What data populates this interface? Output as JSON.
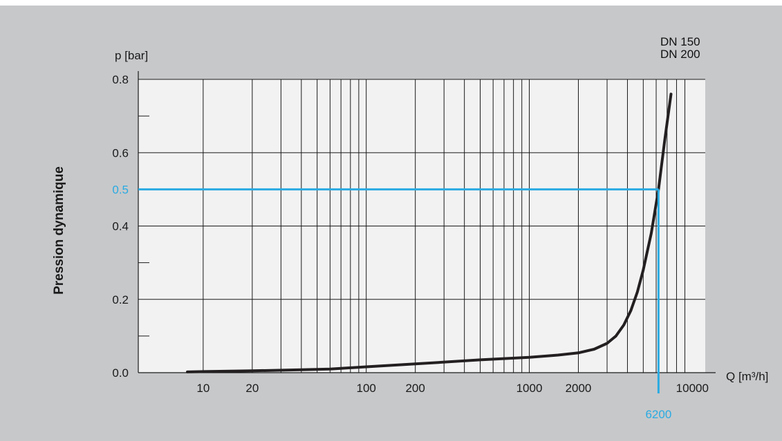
{
  "chart_data": {
    "type": "line",
    "title": "",
    "ylabel_title": "Pression dynamique",
    "ylabel": "p [bar]",
    "xlabel": "Q [m³/h]",
    "x_scale": "log",
    "xlim": [
      4,
      12000
    ],
    "ylim": [
      0,
      0.8
    ],
    "x_ticks": [
      10,
      20,
      100,
      200,
      1000,
      2000,
      10000
    ],
    "x_tick_labels": [
      "10",
      "20",
      "100",
      "200",
      "1000",
      "2000",
      "10000"
    ],
    "y_ticks": [
      0.0,
      0.2,
      0.4,
      0.6,
      0.8
    ],
    "y_tick_labels": [
      "0.0",
      "0.2",
      "0.4",
      "0.6",
      "0.8"
    ],
    "y_minor_ticks": [
      0.1,
      0.3,
      0.7
    ],
    "grid": true,
    "legend": [
      "DN 150",
      "DN 200"
    ],
    "legend_position": "top-right",
    "series": [
      {
        "name": "DN 150 / DN 200",
        "color": "#231f20",
        "x": [
          8,
          10,
          20,
          40,
          60,
          100,
          200,
          500,
          1000,
          1500,
          2000,
          2500,
          3000,
          3400,
          3800,
          4200,
          4600,
          5000,
          5600,
          6200,
          6800,
          7400,
          8000
        ],
        "y": [
          0.002,
          0.003,
          0.005,
          0.008,
          0.01,
          0.016,
          0.024,
          0.035,
          0.042,
          0.048,
          0.054,
          0.064,
          0.08,
          0.1,
          0.13,
          0.17,
          0.22,
          0.28,
          0.38,
          0.5,
          0.64,
          0.76,
          0.86
        ]
      }
    ],
    "annotation": {
      "color": "#29abe2",
      "x": 6200,
      "y": 0.5,
      "x_label": "6200",
      "y_label": "0.5"
    }
  }
}
